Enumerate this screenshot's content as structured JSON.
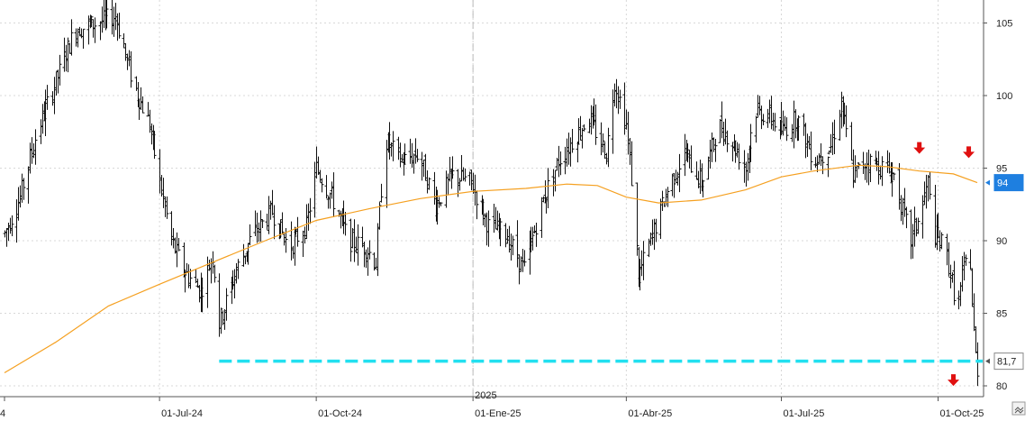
{
  "chart_data": {
    "type": "ohlc",
    "grid": true,
    "y_axis_position": "right",
    "ylim": [
      79,
      106
    ],
    "y_ticks": [
      "80",
      "85",
      "90",
      "95",
      "100",
      "105"
    ],
    "x_tick_labels": [
      "4",
      "01-Jul-24",
      "01-Oct-24",
      "01-Ene-25",
      "01-Abr-25",
      "01-Jul-25",
      "01-Oct-25"
    ],
    "x_tick_dates": [
      "2024-04-01",
      "2024-07-01",
      "2024-10-01",
      "2025-01-01",
      "2025-04-01",
      "2025-07-01",
      "2025-10-01"
    ],
    "year_separator": {
      "label": "2025",
      "date": "2025-01-01"
    },
    "x_range": [
      "2024-04-01",
      "2025-10-24"
    ],
    "price_path": [
      [
        "2024-04-01",
        90.5
      ],
      [
        "2024-04-10",
        93
      ],
      [
        "2024-04-20",
        97.5
      ],
      [
        "2024-05-01",
        101
      ],
      [
        "2024-05-12",
        104.5
      ],
      [
        "2024-05-25",
        105
      ],
      [
        "2024-06-05",
        105.5
      ],
      [
        "2024-06-15",
        101
      ],
      [
        "2024-06-25",
        98
      ],
      [
        "2024-07-01",
        94
      ],
      [
        "2024-07-08",
        90
      ],
      [
        "2024-07-15",
        88
      ],
      [
        "2024-07-25",
        86.5
      ],
      [
        "2024-08-01",
        89
      ],
      [
        "2024-08-05",
        84.3
      ],
      [
        "2024-08-15",
        88
      ],
      [
        "2024-08-25",
        90.5
      ],
      [
        "2024-09-05",
        92
      ],
      [
        "2024-09-15",
        89.5
      ],
      [
        "2024-09-25",
        91
      ],
      [
        "2024-10-01",
        95
      ],
      [
        "2024-10-10",
        93
      ],
      [
        "2024-10-20",
        90
      ],
      [
        "2024-10-30",
        89.5
      ],
      [
        "2024-11-05",
        88.5
      ],
      [
        "2024-11-10",
        97
      ],
      [
        "2024-11-20",
        95.5
      ],
      [
        "2024-11-30",
        96
      ],
      [
        "2024-12-10",
        92.5
      ],
      [
        "2024-12-20",
        94.5
      ],
      [
        "2024-12-31",
        94
      ],
      [
        "2025-01-10",
        91
      ],
      [
        "2025-01-20",
        90.5
      ],
      [
        "2025-01-31",
        88
      ],
      [
        "2025-02-10",
        92.5
      ],
      [
        "2025-02-20",
        95.5
      ],
      [
        "2025-03-01",
        97
      ],
      [
        "2025-03-10",
        98.5
      ],
      [
        "2025-03-20",
        96
      ],
      [
        "2025-03-25",
        101
      ],
      [
        "2025-04-01",
        98
      ],
      [
        "2025-04-05",
        93
      ],
      [
        "2025-04-08",
        87.5
      ],
      [
        "2025-04-15",
        90
      ],
      [
        "2025-04-25",
        93.5
      ],
      [
        "2025-05-05",
        96
      ],
      [
        "2025-05-15",
        94
      ],
      [
        "2025-05-25",
        98
      ],
      [
        "2025-06-01",
        97
      ],
      [
        "2025-06-10",
        95
      ],
      [
        "2025-06-15",
        99
      ],
      [
        "2025-06-25",
        98.5
      ],
      [
        "2025-07-01",
        97.5
      ],
      [
        "2025-07-10",
        98.5
      ],
      [
        "2025-07-20",
        95.5
      ],
      [
        "2025-07-30",
        96.5
      ],
      [
        "2025-08-05",
        99.5
      ],
      [
        "2025-08-12",
        94.5
      ],
      [
        "2025-08-20",
        95.5
      ],
      [
        "2025-08-30",
        95
      ],
      [
        "2025-09-05",
        94.5
      ],
      [
        "2025-09-10",
        92
      ],
      [
        "2025-09-15",
        90
      ],
      [
        "2025-09-22",
        92.5
      ],
      [
        "2025-09-25",
        94
      ],
      [
        "2025-09-28",
        90.5
      ],
      [
        "2025-10-05",
        89.5
      ],
      [
        "2025-10-10",
        86.5
      ],
      [
        "2025-10-12",
        85
      ],
      [
        "2025-10-15",
        87.5
      ],
      [
        "2025-10-18",
        89
      ],
      [
        "2025-10-19",
        92
      ],
      [
        "2025-10-20",
        88.5
      ],
      [
        "2025-10-21",
        85.5
      ],
      [
        "2025-10-23",
        82
      ],
      [
        "2025-10-24",
        81.2
      ]
    ],
    "moving_average": {
      "color": "#f5a020",
      "path": [
        [
          "2024-04-01",
          80.9
        ],
        [
          "2024-05-01",
          83
        ],
        [
          "2024-06-01",
          85.5
        ],
        [
          "2024-07-01",
          87
        ],
        [
          "2024-08-01",
          88.5
        ],
        [
          "2024-09-01",
          90
        ],
        [
          "2024-10-01",
          91.4
        ],
        [
          "2024-11-01",
          92.2
        ],
        [
          "2024-12-01",
          92.9
        ],
        [
          "2025-01-01",
          93.4
        ],
        [
          "2025-02-01",
          93.6
        ],
        [
          "2025-02-25",
          93.9
        ],
        [
          "2025-03-15",
          93.8
        ],
        [
          "2025-04-01",
          93.0
        ],
        [
          "2025-04-20",
          92.6
        ],
        [
          "2025-05-15",
          92.8
        ],
        [
          "2025-06-10",
          93.5
        ],
        [
          "2025-07-01",
          94.4
        ],
        [
          "2025-07-20",
          94.8
        ],
        [
          "2025-08-15",
          95.2
        ],
        [
          "2025-09-01",
          95.1
        ],
        [
          "2025-09-20",
          94.8
        ],
        [
          "2025-10-10",
          94.6
        ],
        [
          "2025-10-24",
          94.0
        ]
      ]
    },
    "support_line": {
      "value": 81.7,
      "from": "2024-08-05",
      "to": "2025-10-24",
      "color": "#22e0f0",
      "style": "dashed"
    },
    "price_tags": [
      {
        "value": 94,
        "label": "94",
        "bg": "#1e7fe0"
      },
      {
        "value": 81.7,
        "label": "81,7",
        "bg": "#ffffff"
      }
    ],
    "markers": [
      {
        "kind": "down-arrow",
        "date": "2025-09-20",
        "price": 96.3,
        "color": "#e01010"
      },
      {
        "kind": "down-arrow",
        "date": "2025-10-19",
        "price": 96.0,
        "color": "#e01010"
      },
      {
        "kind": "down-arrow",
        "date": "2025-10-10",
        "price": 80.3,
        "color": "#e01010"
      }
    ]
  }
}
